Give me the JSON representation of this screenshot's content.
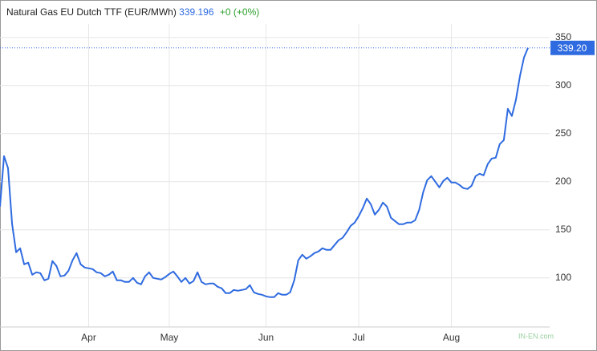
{
  "chart_data": {
    "type": "line",
    "title": "Natural Gas EU Dutch TTF (EUR/MWh)",
    "price": 339.196,
    "change": "+0 (+0%)",
    "last_price_label": "339.20",
    "watermark": "IN-EN.com",
    "categories": [
      null,
      null,
      null,
      null,
      null,
      null,
      null,
      null,
      null,
      null,
      null,
      null,
      null,
      null,
      null,
      null,
      null,
      null,
      null,
      null,
      null,
      null,
      "Apr",
      null,
      null,
      null,
      null,
      null,
      null,
      null,
      null,
      null,
      null,
      null,
      null,
      null,
      null,
      null,
      null,
      null,
      null,
      null,
      "May",
      null,
      null,
      null,
      null,
      null,
      null,
      null,
      null,
      null,
      null,
      null,
      null,
      null,
      null,
      null,
      null,
      null,
      null,
      null,
      null,
      null,
      null,
      null,
      "Jun",
      null,
      null,
      null,
      null,
      null,
      null,
      null,
      null,
      null,
      null,
      null,
      null,
      null,
      null,
      null,
      null,
      null,
      null,
      null,
      null,
      null,
      null,
      "Jul",
      null,
      null,
      null,
      null,
      null,
      null,
      null,
      null,
      null,
      null,
      null,
      null,
      null,
      null,
      null,
      null,
      null,
      null,
      null,
      null,
      null,
      null,
      "Aug",
      null,
      null,
      null,
      null,
      null,
      null,
      null,
      null,
      null,
      null,
      null,
      null,
      null,
      null,
      null,
      null,
      null,
      null,
      null
    ],
    "series": [
      {
        "name": "Natural Gas EU Dutch TTF",
        "color": "#2f6be0",
        "values": [
          174.2,
          226.7,
          214.2,
          155.8,
          126.7,
          130.8,
          114.2,
          115.8,
          103.3,
          105.8,
          105,
          97.5,
          99.2,
          117.5,
          112.5,
          101.7,
          102.5,
          107.5,
          118.3,
          125.8,
          114.2,
          110.8,
          110,
          109.2,
          105.8,
          105,
          101.7,
          103.3,
          106.7,
          97.5,
          97.5,
          95.8,
          95.8,
          100,
          95,
          93.3,
          101.7,
          105.8,
          100,
          99.2,
          98.3,
          100.8,
          104.2,
          106.7,
          101.7,
          95.8,
          100,
          94.2,
          96.7,
          105.8,
          95.8,
          93.3,
          94.2,
          94.2,
          90.8,
          89.2,
          84.2,
          84.2,
          87.5,
          86.7,
          87.5,
          88.3,
          92.5,
          85,
          83.3,
          82.5,
          80.8,
          80,
          80,
          84.2,
          82.5,
          82.5,
          85,
          97.5,
          118.3,
          124.2,
          120,
          122.5,
          125.8,
          127.5,
          130.8,
          129.2,
          129.2,
          134.2,
          139.2,
          141.7,
          147.5,
          154.2,
          157.5,
          164.2,
          172.5,
          182.5,
          176.7,
          165.8,
          170.8,
          178.3,
          174.2,
          162.5,
          159.2,
          155.8,
          155.8,
          157.5,
          157.5,
          160,
          170.8,
          189.2,
          201.7,
          205.8,
          200,
          194.2,
          200.8,
          204.2,
          199.2,
          199.2,
          196.7,
          193.3,
          192.5,
          195.8,
          205.8,
          208.3,
          206.7,
          218.3,
          224.2,
          225,
          239.2,
          243.3,
          275.8,
          268.3,
          285,
          310,
          329.2,
          339.196
        ]
      }
    ],
    "ylim": [
      49,
      364
    ],
    "yticks": [
      100,
      150,
      200,
      250,
      300,
      350
    ],
    "grid": true
  }
}
